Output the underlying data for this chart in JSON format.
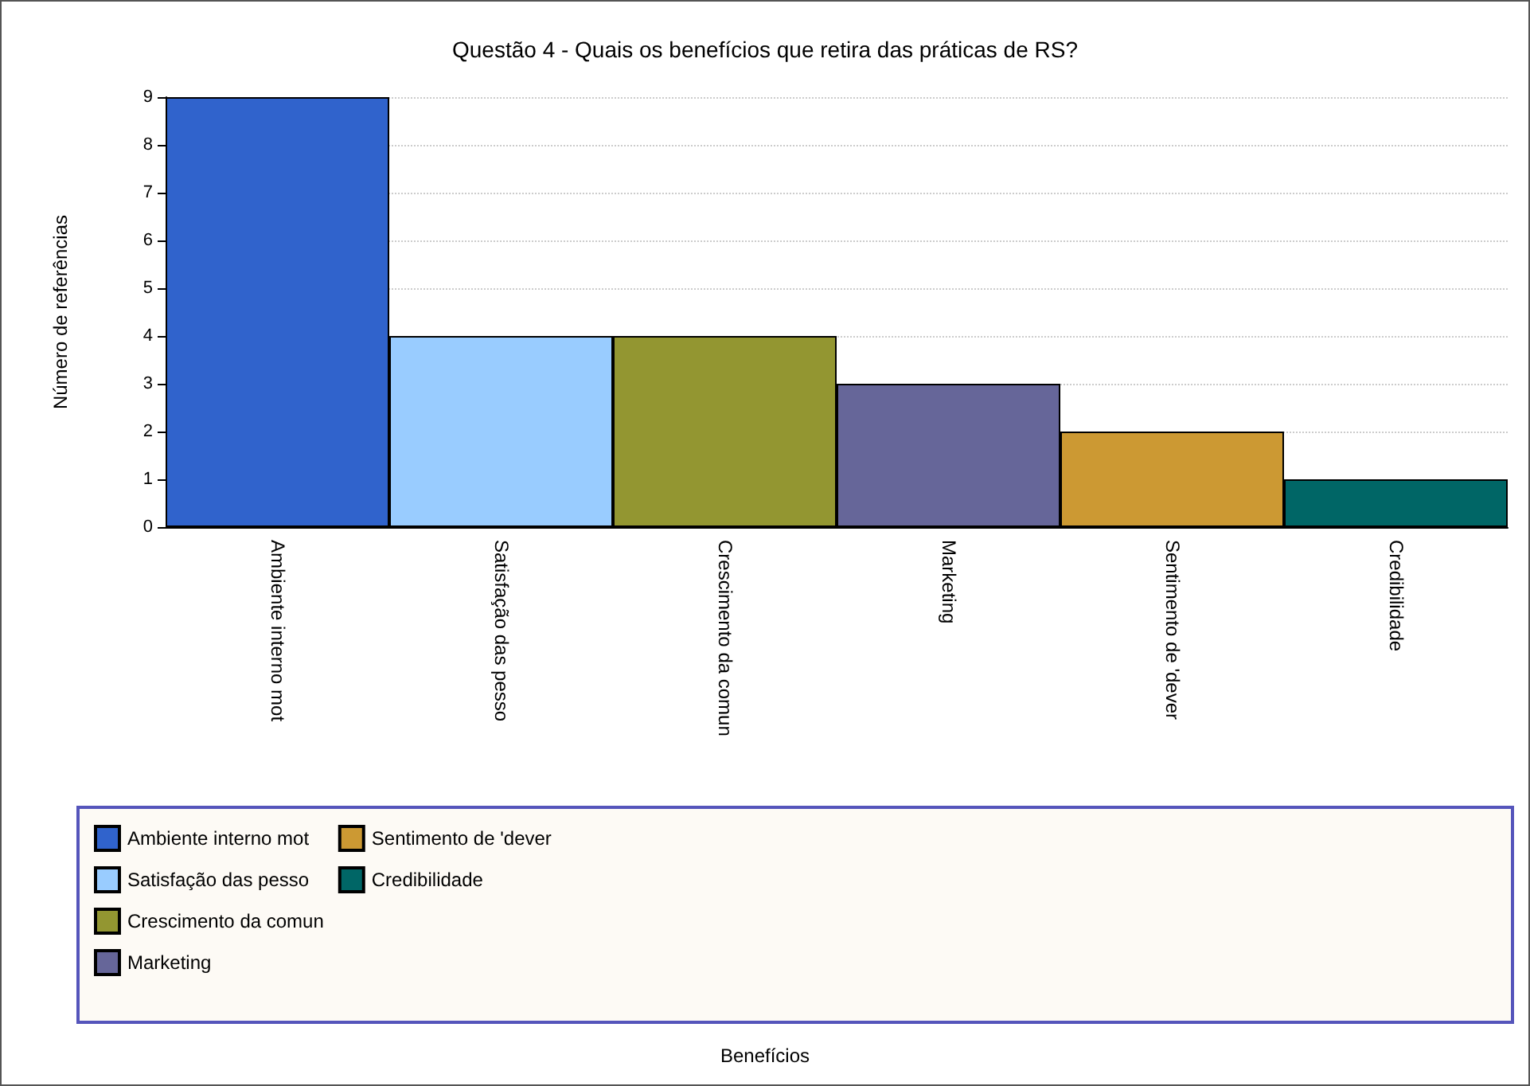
{
  "chart_data": {
    "type": "bar",
    "title": "Questão 4 - Quais os benefícios que retira das práticas de RS?",
    "annotations": [
      "Benefícios"
    ],
    "ylabel": "Número de referências",
    "categories": [
      "Ambiente interno mot",
      "Satisfação das pesso",
      "Crescimento da comun",
      "Marketing",
      "Sentimento de 'dever",
      "Credibilidade"
    ],
    "series": [
      {
        "name": "Ambiente interno mot",
        "color": "#3063cc",
        "values": [
          9,
          null,
          null,
          null,
          null,
          null
        ]
      },
      {
        "name": "Satisfação das pesso",
        "color": "#99ccff",
        "values": [
          null,
          4,
          null,
          null,
          null,
          null
        ]
      },
      {
        "name": "Crescimento da comun",
        "color": "#939631",
        "values": [
          null,
          null,
          4,
          null,
          null,
          null
        ]
      },
      {
        "name": "Marketing",
        "color": "#666699",
        "values": [
          null,
          null,
          null,
          3,
          null,
          null
        ]
      },
      {
        "name": "Sentimento de 'dever",
        "color": "#cc9933",
        "values": [
          null,
          null,
          null,
          null,
          2,
          null
        ]
      },
      {
        "name": "Credibilidade",
        "color": "#006666",
        "values": [
          null,
          null,
          null,
          null,
          null,
          1
        ]
      }
    ],
    "stacked": true,
    "ylim": [
      0,
      9
    ],
    "yticks": [
      0,
      1,
      2,
      3,
      4,
      5,
      6,
      7,
      8,
      9
    ],
    "grid": "y",
    "legend": "bottom"
  }
}
